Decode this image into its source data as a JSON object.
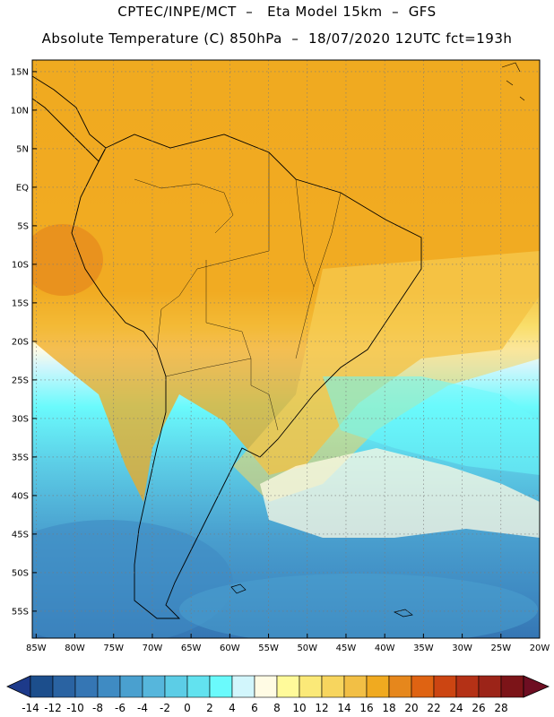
{
  "header": {
    "line1": "CPTEC/INPE/MCT  –   Eta Model 15km  –  GFS",
    "line2": "Absolute Temperature (C) 850hPa  –  18/07/2020 12UTC fct=193h"
  },
  "map": {
    "lat_labels": [
      "15N",
      "10N",
      "5N",
      "EQ",
      "5S",
      "10S",
      "15S",
      "20S",
      "25S",
      "30S",
      "35S",
      "40S",
      "45S",
      "50S",
      "55S"
    ],
    "lon_labels": [
      "85W",
      "80W",
      "75W",
      "70W",
      "65W",
      "60W",
      "55W",
      "50W",
      "45W",
      "40W",
      "35W",
      "30W",
      "25W",
      "20W"
    ],
    "lat_values": [
      15,
      10,
      5,
      0,
      -5,
      -10,
      -15,
      -20,
      -25,
      -30,
      -35,
      -40,
      -45,
      -50,
      -55
    ],
    "lon_values": [
      -85,
      -80,
      -75,
      -70,
      -65,
      -60,
      -55,
      -50,
      -45,
      -40,
      -35,
      -30,
      -25,
      -20
    ],
    "extent": {
      "lon_min": -85.5,
      "lon_max": -20,
      "lat_min": -58.5,
      "lat_max": 16.5
    }
  },
  "colorbar": {
    "labels": [
      "-14",
      "-12",
      "-10",
      "-8",
      "-6",
      "-4",
      "-2",
      "0",
      "2",
      "4",
      "6",
      "8",
      "10",
      "12",
      "14",
      "16",
      "18",
      "20",
      "22",
      "24",
      "26",
      "28"
    ],
    "colors": [
      "#1c4e8c",
      "#2a63a2",
      "#3576b4",
      "#3f8bc3",
      "#4aa0cf",
      "#56b6dc",
      "#5ccde6",
      "#62e2ef",
      "#6afafc",
      "#d2f6fc",
      "#fffbe4",
      "#fffa9a",
      "#fbe978",
      "#f7d55e",
      "#f2bf45",
      "#f0aa20",
      "#e6871c",
      "#df6312",
      "#cc4512",
      "#b43116",
      "#9c2418",
      "#7c1418"
    ],
    "low_arrow_color": "#1d3a8a",
    "high_arrow_color": "#6e0e22"
  }
}
